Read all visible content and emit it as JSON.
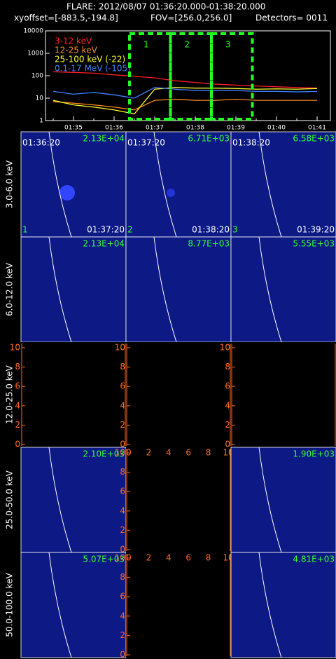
{
  "header": {
    "title": "FLARE: 2012/08/07 01:36:20.000-01:38:20.000",
    "xyoffset": "xyoffset=[-883.5,-194.8]",
    "fov": "FOV=[256.0,256.0]",
    "detectors": "Detectors= 0011"
  },
  "chart_data": {
    "type": "line",
    "log_y": true,
    "categories": [
      null,
      "01:35",
      null,
      "01:36",
      null,
      "01:37",
      null,
      "01:38",
      null,
      "01:39",
      null,
      "01:40",
      null,
      "01:41"
    ],
    "series": [
      {
        "name": "3-12 keV",
        "color": "#ff2020",
        "values": [
          150,
          140,
          130,
          110,
          95,
          80,
          60,
          50,
          42,
          38,
          35,
          32,
          30,
          28
        ]
      },
      {
        "name": "12-25 keV",
        "color": "#ff8c1a",
        "values": [
          7,
          6,
          5,
          4,
          3,
          8,
          9,
          8,
          8,
          9,
          8,
          8,
          8,
          8
        ]
      },
      {
        "name": "25-100 keV (-22)",
        "color": "#ffff30",
        "values": [
          8,
          5,
          4,
          3,
          2,
          25,
          30,
          28,
          28,
          27,
          25,
          26,
          25,
          27
        ]
      },
      {
        "name": "0.1-17 MeV (-105)",
        "color": "#4080ff",
        "values": [
          20,
          15,
          18,
          14,
          10,
          30,
          25,
          22,
          22,
          22,
          20,
          20,
          19,
          20
        ]
      }
    ],
    "ylim": [
      1,
      10000
    ],
    "yticks": [
      1,
      10,
      100,
      1000,
      10000
    ],
    "intervals": [
      "1",
      "2",
      "3"
    ],
    "interval_color": "#22ff22"
  },
  "panels": {
    "empty_ticks": [
      0,
      2,
      4,
      6,
      8,
      10
    ],
    "rows": [
      {
        "label": "3.0-6.0 keV",
        "cells": [
          {
            "max": "2.13E+04",
            "start": "01:36:20",
            "end": "01:37:20",
            "index": "1"
          },
          {
            "max": "6.71E+03",
            "start": "01:37:20",
            "end": "01:38:20",
            "index": "2"
          },
          {
            "max": "6.58E+03",
            "start": "01:38:20",
            "end": "01:39:20",
            "index": "3"
          }
        ]
      },
      {
        "label": "6.0-12.0 keV",
        "cells": [
          {
            "max": "2.13E+04"
          },
          {
            "max": "8.77E+03"
          },
          {
            "max": "5.55E+03"
          }
        ]
      },
      {
        "label": "12.0-25.0 keV",
        "cells": [
          null,
          null,
          null
        ]
      },
      {
        "label": "25.0-50.0 keV",
        "cells": [
          {
            "max": "2.10E+03"
          },
          null,
          {
            "max": "1.90E+03"
          }
        ]
      },
      {
        "label": "50.0-100.0 keV",
        "cells": [
          {
            "max": "5.07E+03"
          },
          null,
          {
            "max": "4.81E+03"
          }
        ]
      }
    ]
  }
}
